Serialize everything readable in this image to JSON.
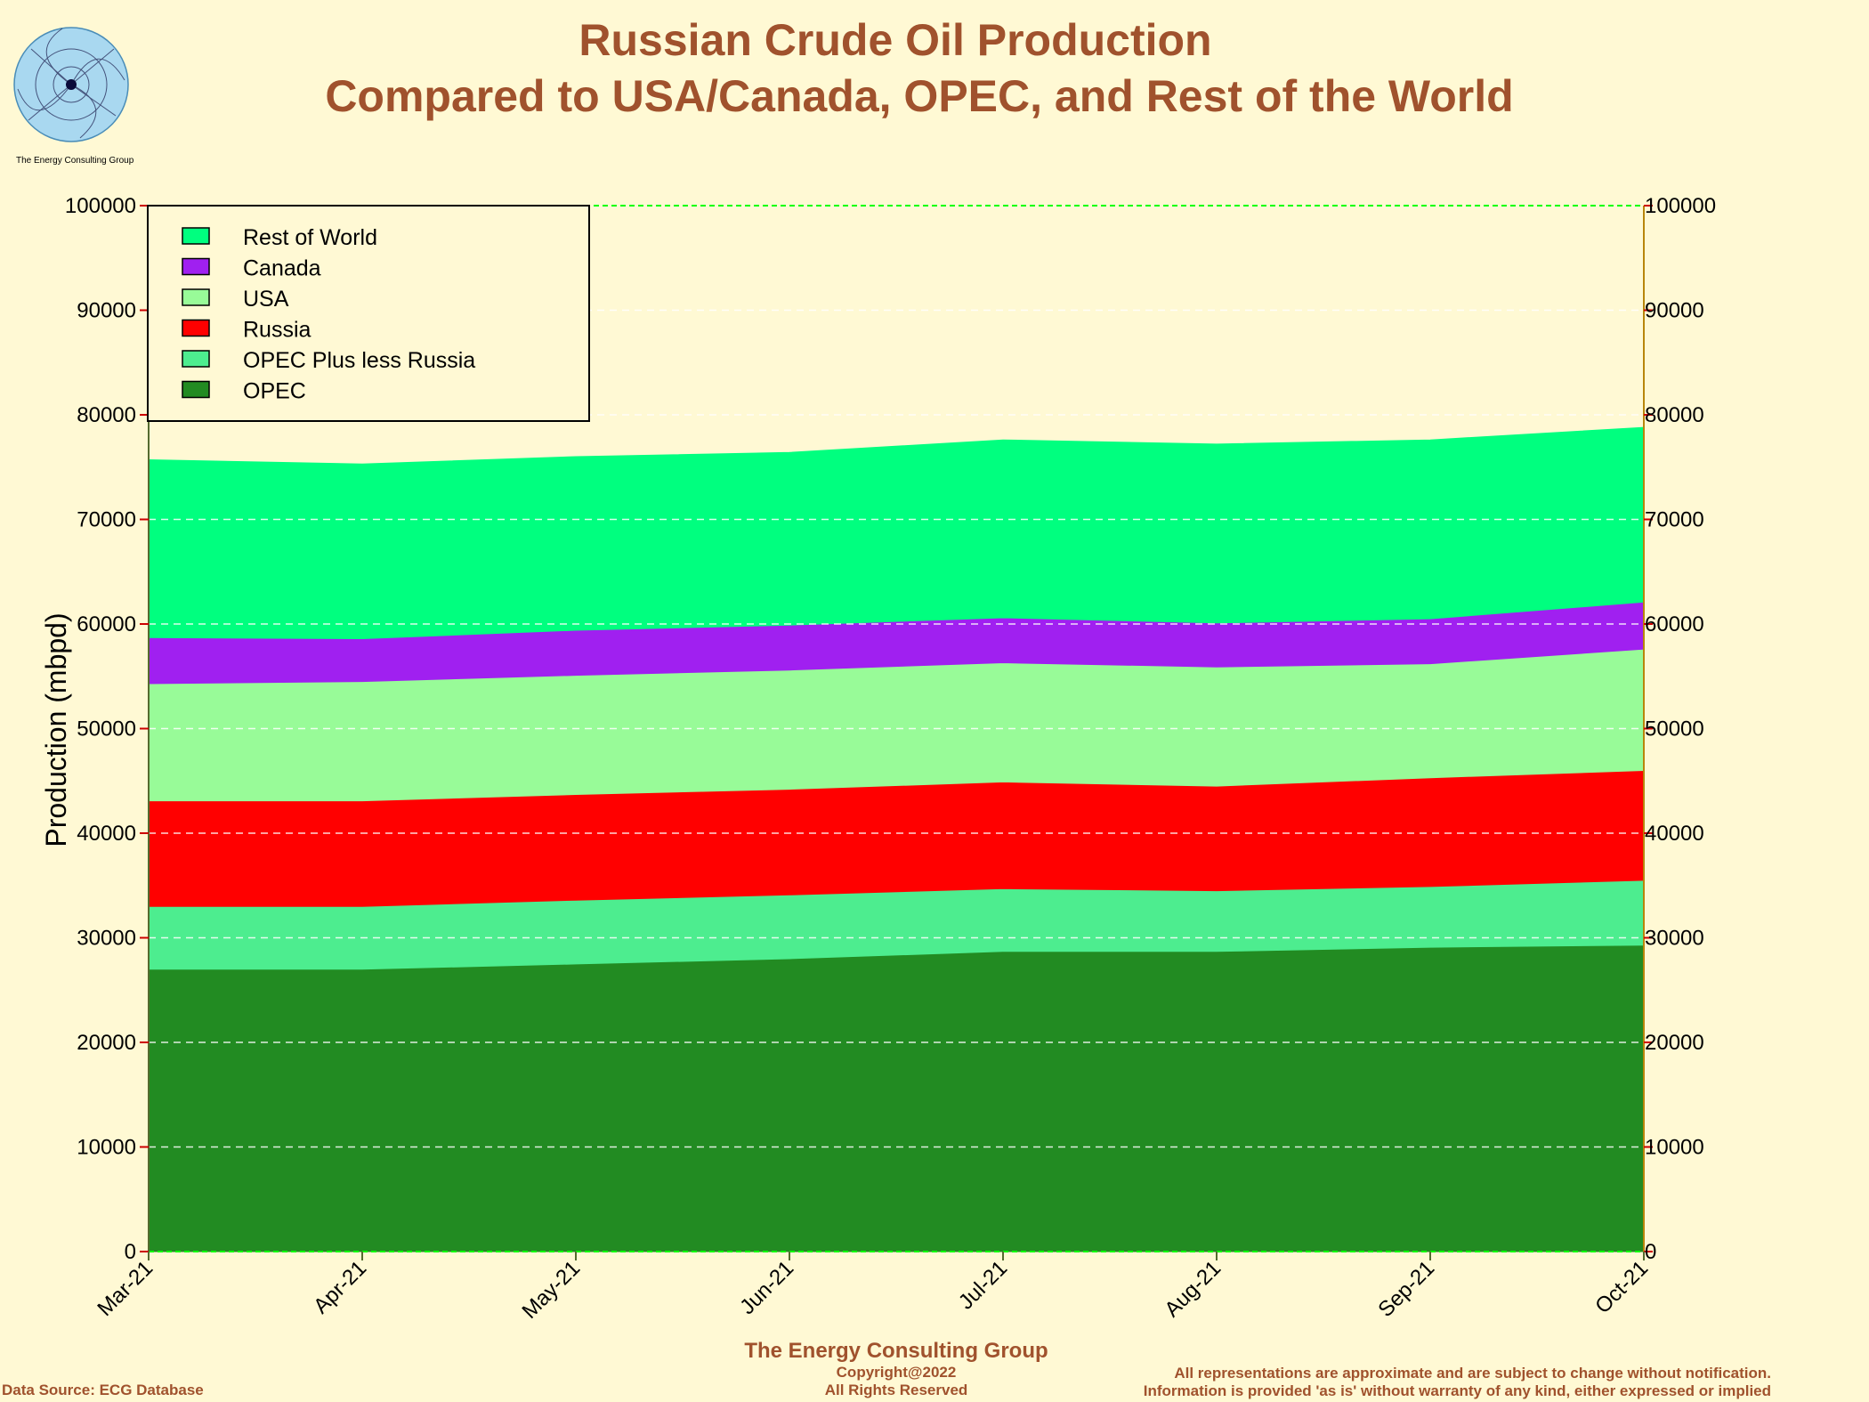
{
  "header": {
    "title_line1": "Russian Crude Oil Production",
    "title_line2": "Compared to USA/Canada, OPEC, and Rest of the World",
    "logo_caption": "The Energy Consulting Group"
  },
  "footer": {
    "org_name": "The Energy Consulting Group",
    "copyright": "Copyright@2022",
    "rights": "All Rights Reserved",
    "data_source": "Data Source: ECG Database",
    "disclaimer_line1": "All representations are approximate and are subject to change without notification.",
    "disclaimer_line2": "Information is provided 'as is' without warranty of any kind, either expressed or implied"
  },
  "colors": {
    "background": "#fff9d4",
    "title": "#a0522d",
    "opec": "#228b22",
    "opec_plus_less_russia": "#4ded8f",
    "russia": "#ff0000",
    "usa": "#98fb98",
    "canada": "#a020f0",
    "rest_of_world": "#00ff7f"
  },
  "chart_data": {
    "type": "area",
    "stacked": true,
    "ylabel": "Production (mbpd)",
    "xlabel": "",
    "ylim": [
      0,
      100000
    ],
    "yticks": [
      0,
      10000,
      20000,
      30000,
      40000,
      50000,
      60000,
      70000,
      80000,
      90000,
      100000
    ],
    "secondary_y_axis": true,
    "grid": "horizontal dashed",
    "legend_position": "top-left",
    "x": [
      "Mar-21",
      "Apr-21",
      "May-21",
      "Jun-21",
      "Jul-21",
      "Aug-21",
      "Sep-21",
      "Oct-21"
    ],
    "series": [
      {
        "name": "OPEC",
        "color": "#228b22",
        "values": [
          27000,
          27000,
          27500,
          28000,
          28700,
          28700,
          29100,
          29300
        ]
      },
      {
        "name": "OPEC Plus less Russia",
        "color": "#4ded8f",
        "values": [
          6000,
          6000,
          6100,
          6100,
          6000,
          5800,
          5800,
          6200
        ]
      },
      {
        "name": "Russia",
        "color": "#ff0000",
        "values": [
          10100,
          10100,
          10100,
          10100,
          10200,
          10000,
          10400,
          10500
        ]
      },
      {
        "name": "USA",
        "color": "#98fb98",
        "values": [
          11200,
          11400,
          11400,
          11400,
          11400,
          11400,
          10900,
          11600
        ]
      },
      {
        "name": "Canada",
        "color": "#a020f0",
        "values": [
          4400,
          4100,
          4300,
          4300,
          4300,
          4200,
          4300,
          4500
        ]
      },
      {
        "name": "Rest of World",
        "color": "#00ff7f",
        "values": [
          17000,
          16700,
          16600,
          16500,
          17000,
          17100,
          17100,
          16700
        ]
      }
    ],
    "legend_order": [
      "Rest of World",
      "Canada",
      "USA",
      "Russia",
      "OPEC Plus less Russia",
      "OPEC"
    ]
  }
}
